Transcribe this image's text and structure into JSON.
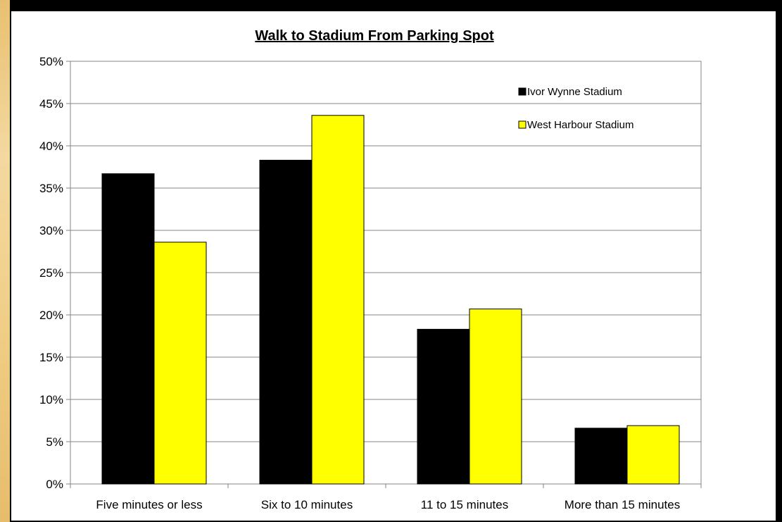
{
  "chart_data": {
    "type": "bar",
    "title": "Walk to Stadium From Parking Spot",
    "categories": [
      "Five minutes or less",
      "Six to 10 minutes",
      "11 to 15 minutes",
      "More than 15 minutes"
    ],
    "series": [
      {
        "name": "Ivor Wynne Stadium",
        "values": [
          36.7,
          38.3,
          18.3,
          6.6
        ],
        "color": "#000000"
      },
      {
        "name": "West Harbour Stadium",
        "values": [
          28.6,
          43.6,
          20.7,
          6.9
        ],
        "color": "#ffff00"
      }
    ],
    "ylim": [
      0,
      50
    ],
    "yticks": [
      "0%",
      "5%",
      "10%",
      "15%",
      "20%",
      "25%",
      "30%",
      "35%",
      "40%",
      "45%",
      "50%"
    ],
    "grid": true,
    "legend_position": "top-right"
  }
}
